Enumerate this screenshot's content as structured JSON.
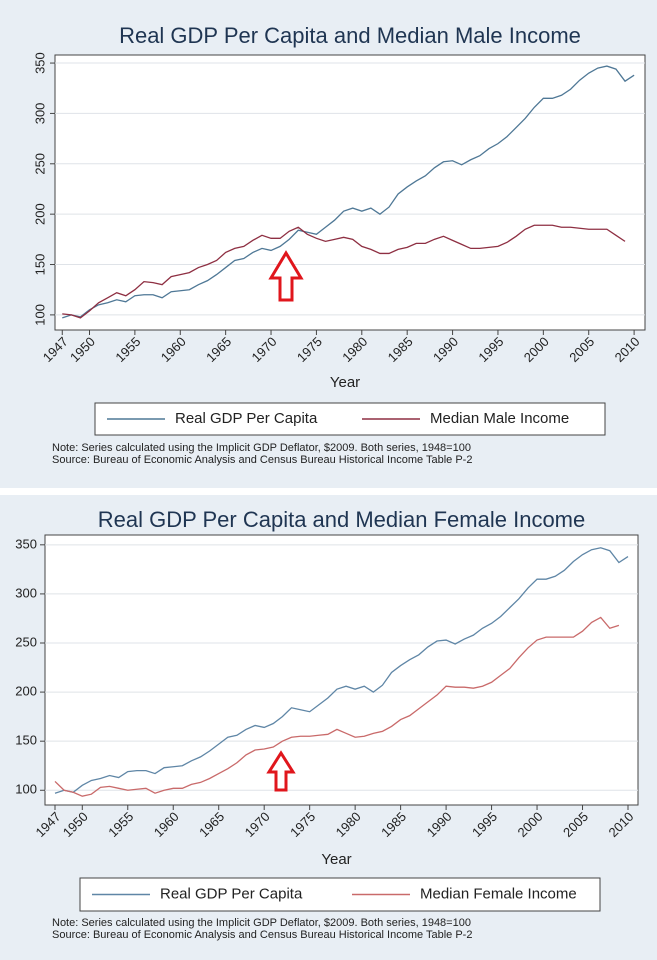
{
  "chart_data": [
    {
      "type": "line",
      "title": "Real GDP Per Capita and Median Male Income",
      "x_label": "Year",
      "note": "Note: Series calculated using the Implicit GDP Deflator, $2009. Both series, 1948=100",
      "source": "Source: Bureau of Economic Analysis and Census Bureau Historical Income Table P-2",
      "x": [
        1947,
        1948,
        1949,
        1950,
        1951,
        1952,
        1953,
        1954,
        1955,
        1956,
        1957,
        1958,
        1959,
        1960,
        1961,
        1962,
        1963,
        1964,
        1965,
        1966,
        1967,
        1968,
        1969,
        1970,
        1971,
        1972,
        1973,
        1974,
        1975,
        1976,
        1977,
        1978,
        1979,
        1980,
        1981,
        1982,
        1983,
        1984,
        1985,
        1986,
        1987,
        1988,
        1989,
        1990,
        1991,
        1992,
        1993,
        1994,
        1995,
        1996,
        1997,
        1998,
        1999,
        2000,
        2001,
        2002,
        2003,
        2004,
        2005,
        2006,
        2007,
        2008,
        2009,
        2010
      ],
      "series": [
        {
          "name": "Real GDP Per Capita",
          "color": "#4f7896",
          "values": [
            97,
            100,
            98,
            105,
            110,
            112,
            115,
            113,
            119,
            120,
            120,
            117,
            123,
            124,
            125,
            130,
            134,
            140,
            147,
            154,
            156,
            162,
            166,
            164,
            168,
            175,
            184,
            182,
            180,
            187,
            194,
            203,
            206,
            203,
            206,
            200,
            207,
            220,
            227,
            233,
            238,
            246,
            252,
            253,
            249,
            254,
            258,
            265,
            270,
            277,
            286,
            295,
            306,
            315,
            315,
            318,
            324,
            333,
            340,
            345,
            347,
            344,
            332,
            338
          ]
        },
        {
          "name": "Median Male Income",
          "color": "#8e2f42",
          "values": [
            101,
            100,
            97,
            104,
            112,
            117,
            122,
            119,
            125,
            133,
            132,
            130,
            138,
            140,
            142,
            147,
            150,
            154,
            162,
            166,
            168,
            174,
            179,
            176,
            176,
            183,
            187,
            180,
            176,
            173,
            175,
            177,
            175,
            168,
            165,
            161,
            161,
            165,
            167,
            171,
            171,
            175,
            178,
            174,
            170,
            166,
            166,
            167,
            168,
            172,
            178,
            185,
            189,
            189,
            189,
            187,
            187,
            186,
            185,
            185,
            185,
            179,
            173,
            null
          ]
        }
      ],
      "xlim": [
        1946.2,
        2011.2
      ],
      "xticks": [
        1947,
        1950,
        1955,
        1960,
        1965,
        1970,
        1975,
        1980,
        1985,
        1990,
        1995,
        2000,
        2005,
        2010
      ],
      "ylim": [
        85,
        358
      ],
      "yticks": [
        100,
        150,
        200,
        250,
        300,
        350
      ],
      "grid": true
    },
    {
      "type": "line",
      "title": "Real GDP Per Capita and Median Female Income",
      "x_label": "Year",
      "note": "Note: Series calculated using the Implicit GDP Deflator, $2009. Both series, 1948=100",
      "source": "Source: Bureau of Economic Analysis and Census Bureau Historical Income Table P-2",
      "x": [
        1947,
        1948,
        1949,
        1950,
        1951,
        1952,
        1953,
        1954,
        1955,
        1956,
        1957,
        1958,
        1959,
        1960,
        1961,
        1962,
        1963,
        1964,
        1965,
        1966,
        1967,
        1968,
        1969,
        1970,
        1971,
        1972,
        1973,
        1974,
        1975,
        1976,
        1977,
        1978,
        1979,
        1980,
        1981,
        1982,
        1983,
        1984,
        1985,
        1986,
        1987,
        1988,
        1989,
        1990,
        1991,
        1992,
        1993,
        1994,
        1995,
        1996,
        1997,
        1998,
        1999,
        2000,
        2001,
        2002,
        2003,
        2004,
        2005,
        2006,
        2007,
        2008,
        2009,
        2010
      ],
      "series": [
        {
          "name": "Real GDP Per Capita",
          "color": "#5f86a6",
          "values": [
            97,
            100,
            98,
            105,
            110,
            112,
            115,
            113,
            119,
            120,
            120,
            117,
            123,
            124,
            125,
            130,
            134,
            140,
            147,
            154,
            156,
            162,
            166,
            164,
            168,
            175,
            184,
            182,
            180,
            187,
            194,
            203,
            206,
            203,
            206,
            200,
            207,
            220,
            227,
            233,
            238,
            246,
            252,
            253,
            249,
            254,
            258,
            265,
            270,
            277,
            286,
            295,
            306,
            315,
            315,
            318,
            324,
            333,
            340,
            345,
            347,
            344,
            332,
            338
          ]
        },
        {
          "name": "Median Female Income",
          "color": "#c96a6a",
          "values": [
            109,
            100,
            98,
            94,
            96,
            103,
            104,
            102,
            100,
            101,
            102,
            97,
            100,
            102,
            102,
            106,
            108,
            112,
            117,
            122,
            128,
            136,
            141,
            142,
            144,
            150,
            154,
            155,
            155,
            156,
            157,
            162,
            158,
            154,
            155,
            158,
            160,
            165,
            172,
            176,
            183,
            190,
            197,
            206,
            205,
            205,
            204,
            206,
            210,
            217,
            224,
            235,
            245,
            253,
            256,
            256,
            256,
            256,
            262,
            271,
            276,
            265,
            268,
            null
          ]
        }
      ],
      "xlim": [
        1945.9,
        2011.1
      ],
      "xticks": [
        1947,
        1950,
        1955,
        1960,
        1965,
        1970,
        1975,
        1980,
        1985,
        1990,
        1995,
        2000,
        2005,
        2010
      ],
      "ylim": [
        85,
        360
      ],
      "yticks": [
        100,
        150,
        200,
        250,
        300,
        350
      ],
      "grid": true
    }
  ]
}
